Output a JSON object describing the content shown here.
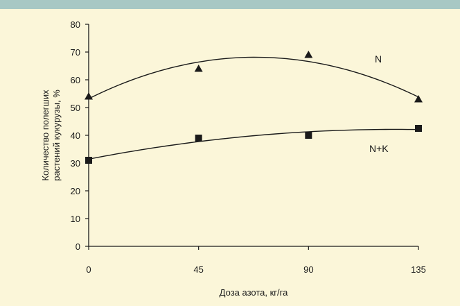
{
  "chart_data": {
    "type": "scatter",
    "xlabel": "Доза азота, кг/га",
    "ylabel_lines": [
      "Количество полегших",
      "растений кукурузы, %"
    ],
    "x_ticks": [
      0,
      45,
      90,
      135
    ],
    "y_ticks": [
      0,
      10,
      20,
      30,
      40,
      50,
      60,
      70,
      80
    ],
    "xlim": [
      0,
      135
    ],
    "ylim": [
      0,
      80
    ],
    "grid": false,
    "series": [
      {
        "name": "N",
        "marker": "triangle",
        "x": [
          0,
          45,
          90,
          135
        ],
        "y": [
          54,
          64,
          69,
          53
        ],
        "trend": "quadratic"
      },
      {
        "name": "N+K",
        "marker": "square",
        "x": [
          0,
          45,
          90,
          135
        ],
        "y": [
          31,
          39,
          40,
          42.5
        ],
        "trend": "quadratic"
      }
    ]
  },
  "colors": {
    "background": "#fbf6d9",
    "top_band": "#a8c8c4",
    "ink": "#1a1a1a"
  }
}
